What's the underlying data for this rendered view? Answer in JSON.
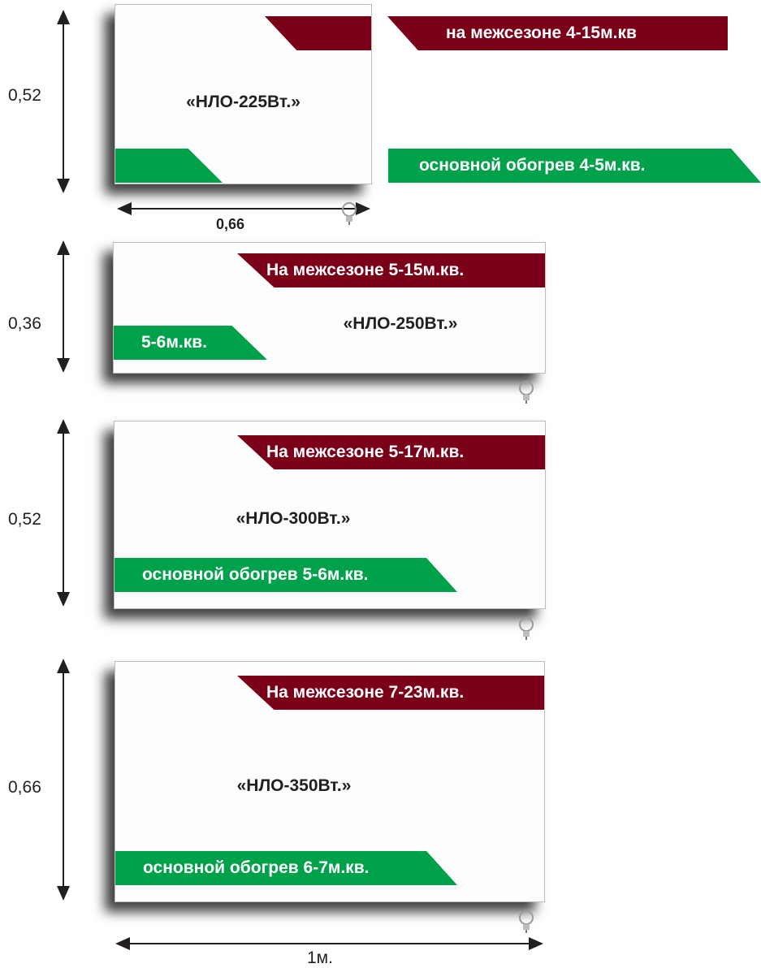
{
  "heaters": [
    {
      "model": "«НЛО-225Вт.»",
      "offseason": "на межсезоне 4-15м.кв",
      "main": "основной обогрев  4-5м.кв.",
      "height": "0,52",
      "width": "0,66"
    },
    {
      "model": "«НЛО-250Вт.»",
      "offseason": "На межсезоне 5-15м.кв.",
      "main": "5-6м.кв.",
      "height": "0,36"
    },
    {
      "model": "«НЛО-300Вт.»",
      "offseason": "На межсезоне 5-17м.кв.",
      "main": "основной обогрев 5-6м.кв.",
      "height": "0,52"
    },
    {
      "model": "«НЛО-350Вт.»",
      "offseason": "На межсезоне 7-23м.кв.",
      "main": "основной обогрев 6-7м.кв.",
      "height": "0,66",
      "width": "1м."
    }
  ],
  "colors": {
    "offseason_band": "#7a0019",
    "main_band": "#00a14b",
    "text": "#231f20"
  }
}
